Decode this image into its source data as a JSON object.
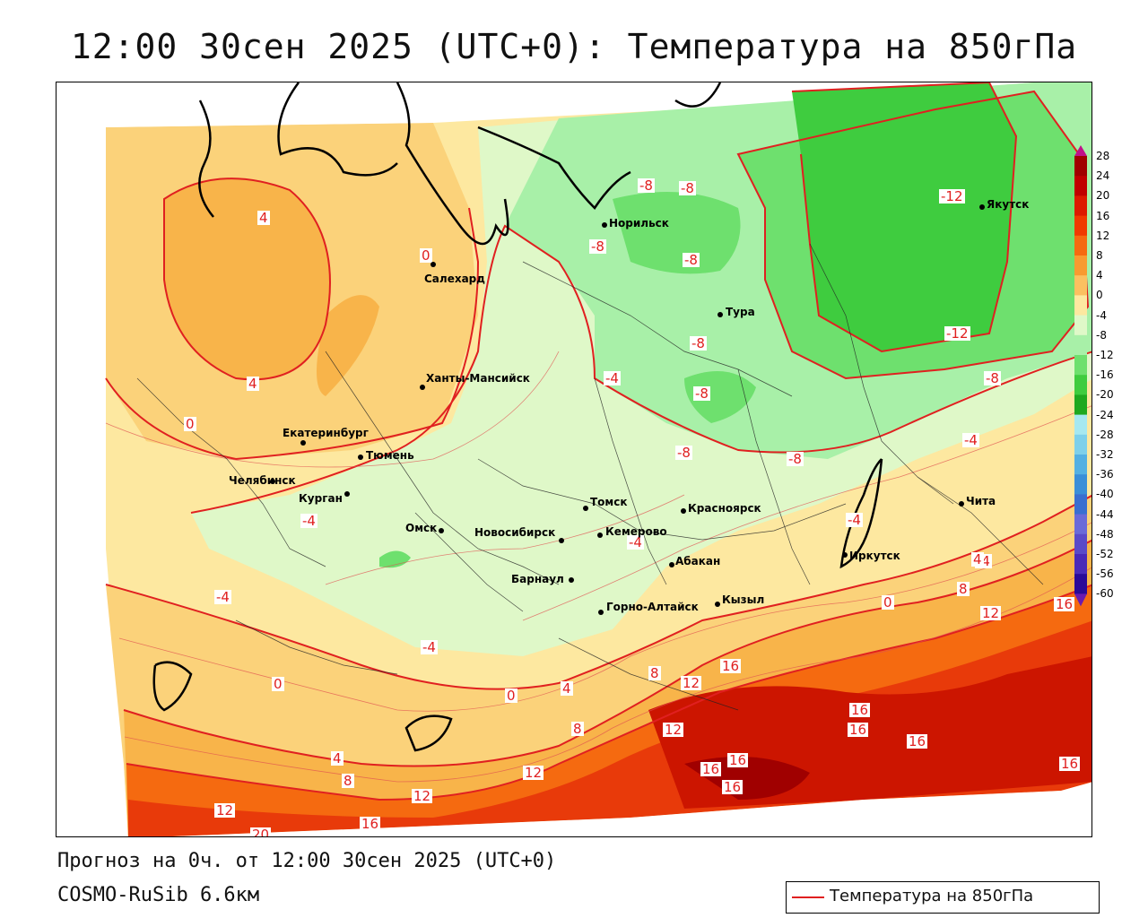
{
  "title": "12:00 30сен 2025 (UTC+0): Температура на 850гПа",
  "footer": {
    "forecast": "Прогноз на 0ч. от 12:00 30сен 2025 (UTC+0)",
    "model": "COSMO-RuSib 6.6км"
  },
  "legend": {
    "line_label": "Температура на 850гПа"
  },
  "colorbar": {
    "ticks": [
      "28",
      "24",
      "20",
      "16",
      "12",
      "8",
      "4",
      "0",
      "-4",
      "-8",
      "-12",
      "-16",
      "-20",
      "-24",
      "-28",
      "-32",
      "-36",
      "-40",
      "-44",
      "-48",
      "-52",
      "-56",
      "-60"
    ],
    "colors": [
      "#a00000",
      "#c00000",
      "#dd1a00",
      "#f03a00",
      "#f56a10",
      "#f89a30",
      "#fbc060",
      "#fde8a0",
      "#dff8c8",
      "#a8f0a8",
      "#6ee06e",
      "#3fcc3f",
      "#1fa81f",
      "#a6e8f0",
      "#7ed0ea",
      "#54b0e2",
      "#3a8ed8",
      "#3a6ed0",
      "#6a6ad8",
      "#5a4ac8",
      "#4a2ab8",
      "#2a0a98"
    ]
  },
  "cities": [
    {
      "name": "Норильск"
    },
    {
      "name": "Якутск"
    },
    {
      "name": "Салехард"
    },
    {
      "name": "Тура"
    },
    {
      "name": "Ханты-Мансийск"
    },
    {
      "name": "Екатеринбург"
    },
    {
      "name": "Тюмень"
    },
    {
      "name": "Челябинск"
    },
    {
      "name": "Курган"
    },
    {
      "name": "Омск"
    },
    {
      "name": "Новосибирск"
    },
    {
      "name": "Томск"
    },
    {
      "name": "Красноярск"
    },
    {
      "name": "Кемерово"
    },
    {
      "name": "Абакан"
    },
    {
      "name": "Барнаул"
    },
    {
      "name": "Горно-Алтайск"
    },
    {
      "name": "Кызыл"
    },
    {
      "name": "Иркутск"
    },
    {
      "name": "Чита"
    }
  ],
  "contour_labels": [
    "-8",
    "-8",
    "-8",
    "-8",
    "-12",
    "-12",
    "-8",
    "-8",
    "-8",
    "-8",
    "-8",
    "-4",
    "-4",
    "-4",
    "-4",
    "-4",
    "-4",
    "-4",
    "-4",
    "0",
    "0",
    "0",
    "0",
    "0",
    "4",
    "4",
    "4",
    "4",
    "4",
    "8",
    "8",
    "8",
    "8",
    "12",
    "12",
    "12",
    "12",
    "12",
    "12",
    "16",
    "16",
    "16",
    "16",
    "16",
    "16",
    "16",
    "16",
    "16",
    "20",
    "16"
  ]
}
